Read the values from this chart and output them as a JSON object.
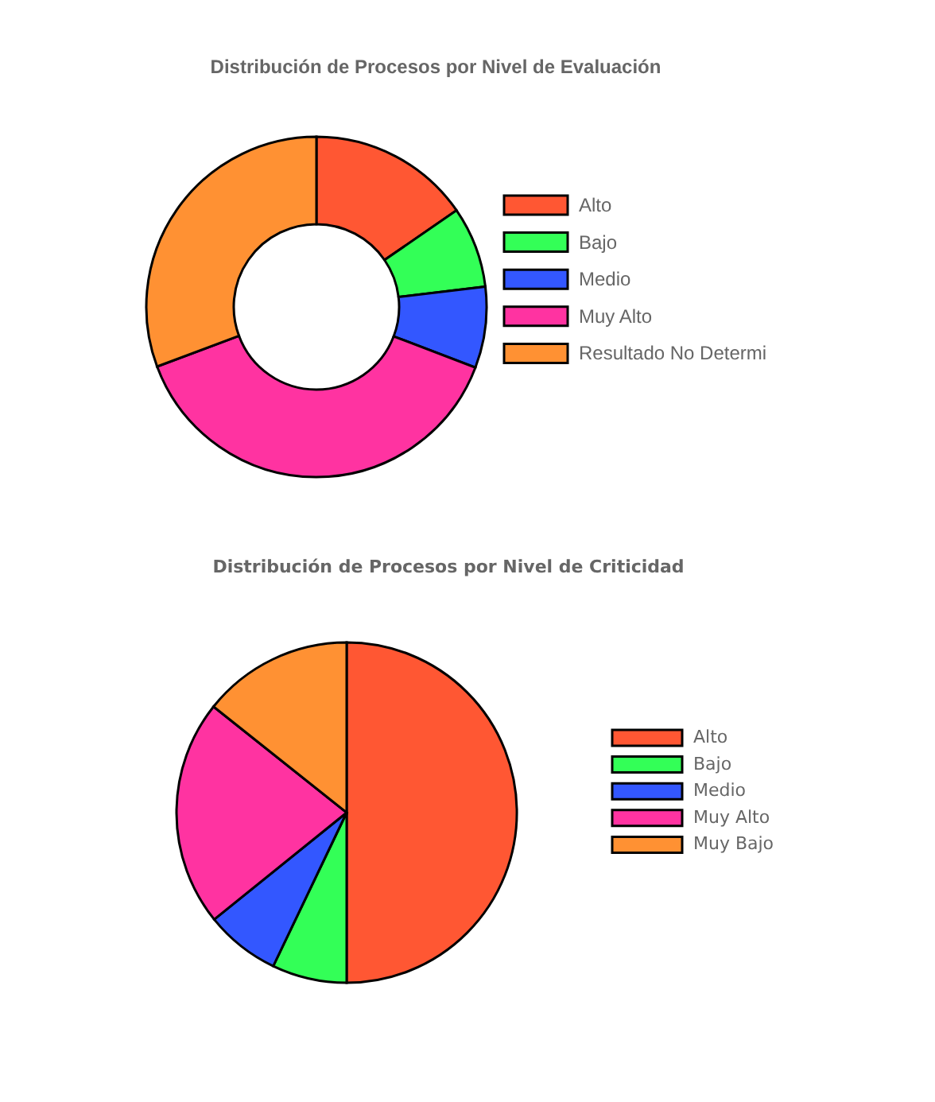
{
  "chart_data": [
    {
      "type": "donut",
      "title": "Distribución de Procesos por Nivel de Evaluación",
      "categories": [
        "Alto",
        "Bajo",
        "Medio",
        "Muy Alto",
        "Resultado No Determi"
      ],
      "values": [
        15.4,
        7.7,
        7.7,
        38.5,
        30.7
      ],
      "colors": [
        "#ff5733",
        "#33ff57",
        "#3357ff",
        "#ff33a1",
        "#ff9133"
      ],
      "legend": "right"
    },
    {
      "type": "pie",
      "title": "Distribución de Procesos por Nivel de Criticidad",
      "categories": [
        "Alto",
        "Bajo",
        "Medio",
        "Muy Alto",
        "Muy Bajo"
      ],
      "values": [
        50,
        7.1,
        7.1,
        21.5,
        14.3
      ],
      "colors": [
        "#ff5733",
        "#33ff57",
        "#3357ff",
        "#ff33a1",
        "#ff9133"
      ],
      "legend": "right"
    }
  ]
}
